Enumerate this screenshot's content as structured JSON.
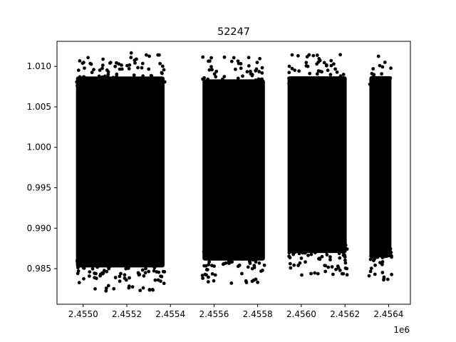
{
  "chart_data": {
    "type": "scatter",
    "title": "52247",
    "xlabel": "",
    "ylabel": "",
    "x_offset_label": "1e6",
    "xlim": [
      2454880,
      2456500
    ],
    "ylim": [
      0.9806,
      1.0131
    ],
    "x_ticks": [
      {
        "value": 2455000,
        "label": "2.4550"
      },
      {
        "value": 2455200,
        "label": "2.4552"
      },
      {
        "value": 2455400,
        "label": "2.4554"
      },
      {
        "value": 2455600,
        "label": "2.4556"
      },
      {
        "value": 2455800,
        "label": "2.4558"
      },
      {
        "value": 2456000,
        "label": "2.4560"
      },
      {
        "value": 2456200,
        "label": "2.4562"
      },
      {
        "value": 2456400,
        "label": "2.4564"
      }
    ],
    "y_ticks": [
      {
        "value": 0.985,
        "label": "0.985"
      },
      {
        "value": 0.99,
        "label": "0.990"
      },
      {
        "value": 0.995,
        "label": "0.995"
      },
      {
        "value": 1.0,
        "label": "1.000"
      },
      {
        "value": 1.005,
        "label": "1.005"
      },
      {
        "value": 1.01,
        "label": "1.010"
      }
    ],
    "grid": false,
    "marker_color": "#000000",
    "segments": [
      {
        "x_range": [
          2454965,
          2455375
        ],
        "y_range": [
          0.9822,
          1.0117
        ]
      },
      {
        "x_range": [
          2455545,
          2455835
        ],
        "y_range": [
          0.9832,
          1.0112
        ]
      },
      {
        "x_range": [
          2455935,
          2456210
        ],
        "y_range": [
          0.9842,
          1.0115
        ]
      },
      {
        "x_range": [
          2456310,
          2456415
        ],
        "y_range": [
          0.9836,
          1.0116
        ]
      }
    ]
  }
}
